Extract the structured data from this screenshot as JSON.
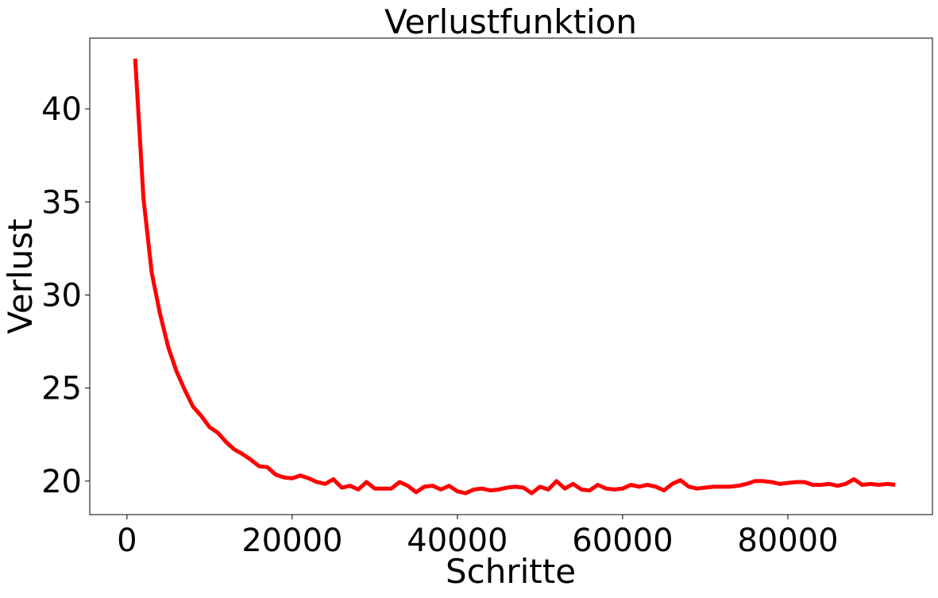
{
  "chart_data": {
    "type": "line",
    "title": "Verlustfunktion",
    "xlabel": "Schritte",
    "ylabel": "Verlust",
    "xlim": [
      -4500,
      97500
    ],
    "ylim": [
      18.2,
      43.8
    ],
    "xticks": [
      0,
      20000,
      40000,
      60000,
      80000
    ],
    "yticks": [
      20,
      25,
      30,
      35,
      40
    ],
    "grid": false,
    "series": [
      {
        "color": "#ff0000",
        "x": [
          1000,
          2000,
          3000,
          4000,
          5000,
          6000,
          7000,
          8000,
          9000,
          10000,
          11000,
          12000,
          13000,
          14000,
          15000,
          16000,
          17000,
          18000,
          19000,
          20000,
          21000,
          22000,
          23000,
          24000,
          25000,
          26000,
          27000,
          28000,
          29000,
          30000,
          31000,
          32000,
          33000,
          34000,
          35000,
          36000,
          37000,
          38000,
          39000,
          40000,
          41000,
          42000,
          43000,
          44000,
          45000,
          46000,
          47000,
          48000,
          49000,
          50000,
          51000,
          52000,
          53000,
          54000,
          55000,
          56000,
          57000,
          58000,
          59000,
          60000,
          61000,
          62000,
          63000,
          64000,
          65000,
          66000,
          67000,
          68000,
          69000,
          70000,
          71000,
          72000,
          73000,
          74000,
          75000,
          76000,
          77000,
          78000,
          79000,
          80000,
          81000,
          82000,
          83000,
          84000,
          85000,
          86000,
          87000,
          88000,
          89000,
          90000,
          91000,
          92000,
          93000
        ],
        "y": [
          42.7,
          35.2,
          31.2,
          29.0,
          27.2,
          25.9,
          24.9,
          24.0,
          23.5,
          22.9,
          22.6,
          22.1,
          21.7,
          21.45,
          21.15,
          20.8,
          20.75,
          20.35,
          20.2,
          20.15,
          20.3,
          20.15,
          19.95,
          19.85,
          20.1,
          19.65,
          19.75,
          19.55,
          19.95,
          19.6,
          19.6,
          19.6,
          19.95,
          19.75,
          19.4,
          19.7,
          19.75,
          19.55,
          19.75,
          19.45,
          19.35,
          19.55,
          19.6,
          19.5,
          19.55,
          19.65,
          19.7,
          19.65,
          19.35,
          19.7,
          19.55,
          20.0,
          19.6,
          19.85,
          19.55,
          19.5,
          19.8,
          19.6,
          19.55,
          19.6,
          19.8,
          19.7,
          19.8,
          19.7,
          19.5,
          19.85,
          20.05,
          19.7,
          19.6,
          19.65,
          19.7,
          19.7,
          19.7,
          19.75,
          19.85,
          20.0,
          20.0,
          19.95,
          19.85,
          19.9,
          19.95,
          19.95,
          19.8,
          19.8,
          19.85,
          19.75,
          19.85,
          20.1,
          19.8,
          19.85,
          19.8,
          19.85,
          19.8
        ]
      }
    ]
  }
}
